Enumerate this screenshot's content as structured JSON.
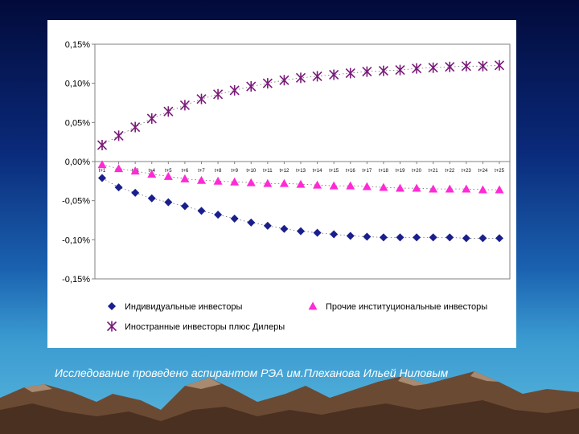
{
  "chart_data": {
    "type": "scatter",
    "title": "",
    "xlabel": "",
    "ylabel": "",
    "ylim": [
      -0.15,
      0.15
    ],
    "y_ticks": [
      "0,15%",
      "0,10%",
      "0,05%",
      "0,00%",
      "-0,05%",
      "-0,10%",
      "-0,15%"
    ],
    "y_tick_values": [
      0.15,
      0.1,
      0.05,
      0.0,
      -0.05,
      -0.1,
      -0.15
    ],
    "categories": [
      "t+1",
      "t+2",
      "t+3",
      "t+4",
      "t+5",
      "t+6",
      "t+7",
      "t+8",
      "t+9",
      "t+10",
      "t+11",
      "t+12",
      "t+13",
      "t+14",
      "t+15",
      "t+16",
      "t+17",
      "t+18",
      "t+19",
      "t+20",
      "t+21",
      "t+22",
      "t+23",
      "t+24",
      "t+25"
    ],
    "series": [
      {
        "name": "Индивидуальные инвесторы",
        "marker": "diamond",
        "color": "#1a1f8c",
        "values": [
          -0.021,
          -0.033,
          -0.04,
          -0.047,
          -0.052,
          -0.057,
          -0.063,
          -0.068,
          -0.073,
          -0.078,
          -0.082,
          -0.086,
          -0.089,
          -0.091,
          -0.093,
          -0.095,
          -0.096,
          -0.097,
          -0.097,
          -0.097,
          -0.097,
          -0.097,
          -0.098,
          -0.098,
          -0.098
        ]
      },
      {
        "name": "Прочие институциональные инвесторы",
        "marker": "triangle",
        "color": "#ff2ad4",
        "values": [
          -0.004,
          -0.009,
          -0.012,
          -0.016,
          -0.019,
          -0.022,
          -0.024,
          -0.025,
          -0.026,
          -0.027,
          -0.028,
          -0.028,
          -0.029,
          -0.03,
          -0.031,
          -0.031,
          -0.032,
          -0.033,
          -0.034,
          -0.034,
          -0.035,
          -0.035,
          -0.035,
          -0.036,
          -0.036
        ]
      },
      {
        "name": "Иностранные инвесторы плюс Дилеры",
        "marker": "star",
        "color": "#7a1a7a",
        "values": [
          0.021,
          0.033,
          0.044,
          0.055,
          0.064,
          0.072,
          0.08,
          0.086,
          0.091,
          0.096,
          0.1,
          0.104,
          0.107,
          0.109,
          0.111,
          0.113,
          0.115,
          0.116,
          0.117,
          0.119,
          0.12,
          0.121,
          0.122,
          0.122,
          0.123
        ]
      }
    ],
    "legend": "bottom"
  },
  "caption": "Исследование проведено аспирантом РЭА им.Плеханова Ильей Ниловым"
}
